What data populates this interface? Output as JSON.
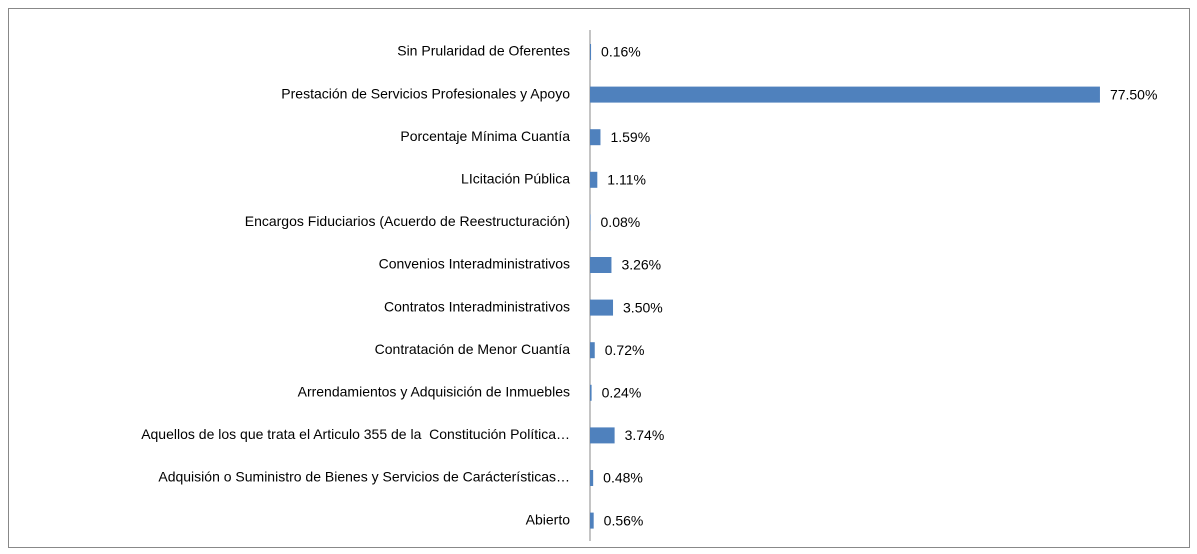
{
  "chart_data": {
    "type": "bar",
    "orientation": "horizontal",
    "color": "#4f81bd",
    "categories": [
      "Sin Prularidad de Oferentes",
      "Prestación de Servicios Profesionales y Apoyo",
      "Porcentaje Mínima Cuantía",
      "LIcitación Pública",
      "Encargos Fiduciarios (Acuerdo de Reestructuración)",
      "Convenios Interadministrativos",
      "Contratos Interadministrativos",
      "Contratación de Menor Cuantía",
      "Arrendamientos y Adquisición de Inmuebles",
      "Aquellos de los que trata el Articulo 355 de la  Constitución Política…",
      "Adquisión o Suministro de Bienes y Servicios de Carácterísticas…",
      "Abierto"
    ],
    "values": [
      0.16,
      77.5,
      1.59,
      1.11,
      0.08,
      3.26,
      3.5,
      0.72,
      0.24,
      3.74,
      0.48,
      0.56
    ],
    "value_labels": [
      "0.16%",
      "77.50%",
      "1.59%",
      "1.11%",
      "0.08%",
      "3.26%",
      "3.50%",
      "0.72%",
      "0.24%",
      "3.74%",
      "0.48%",
      "0.56%"
    ]
  }
}
